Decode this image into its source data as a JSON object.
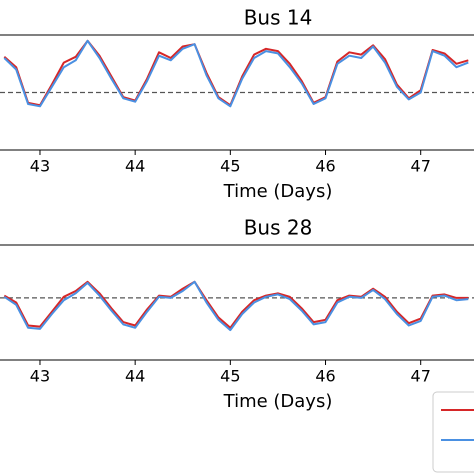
{
  "chart_data": [
    {
      "type": "line",
      "title": "Bus 14",
      "x_label": "Time (Days)",
      "x": [
        42.625,
        42.75,
        42.875,
        43.0,
        43.125,
        43.25,
        43.375,
        43.5,
        43.625,
        43.75,
        43.875,
        44.0,
        44.125,
        44.25,
        44.375,
        44.5,
        44.625,
        44.75,
        44.875,
        45.0,
        45.125,
        45.25,
        45.375,
        45.5,
        45.625,
        45.75,
        45.875,
        46.0,
        46.125,
        46.25,
        46.375,
        46.5,
        46.625,
        46.75,
        46.875,
        47.0,
        47.125,
        47.25,
        47.375,
        47.5
      ],
      "series": [
        {
          "color": "#d62728",
          "values": [
            0.81,
            0.72,
            0.41,
            0.39,
            0.57,
            0.76,
            0.81,
            0.95,
            0.82,
            0.64,
            0.46,
            0.43,
            0.62,
            0.85,
            0.8,
            0.9,
            0.92,
            0.67,
            0.46,
            0.39,
            0.64,
            0.83,
            0.88,
            0.86,
            0.75,
            0.6,
            0.41,
            0.46,
            0.77,
            0.85,
            0.83,
            0.91,
            0.79,
            0.57,
            0.45,
            0.52,
            0.87,
            0.84,
            0.75,
            0.78
          ]
        },
        {
          "color": "#4a90e2",
          "values": [
            0.8,
            0.7,
            0.4,
            0.38,
            0.55,
            0.72,
            0.78,
            0.95,
            0.8,
            0.62,
            0.45,
            0.42,
            0.6,
            0.82,
            0.78,
            0.88,
            0.92,
            0.65,
            0.45,
            0.38,
            0.62,
            0.8,
            0.86,
            0.84,
            0.72,
            0.58,
            0.4,
            0.45,
            0.75,
            0.82,
            0.8,
            0.9,
            0.76,
            0.55,
            0.44,
            0.5,
            0.86,
            0.82,
            0.72,
            0.76
          ]
        }
      ],
      "reference_line": 0.5,
      "xlim": [
        42.58,
        47.56
      ],
      "ylim": [
        0,
        1
      ],
      "xticks": [
        43,
        44,
        45,
        46,
        47
      ]
    },
    {
      "type": "line",
      "title": "Bus 28",
      "x_label": "Time (Days)",
      "x": [
        42.625,
        42.75,
        42.875,
        43.0,
        43.125,
        43.25,
        43.375,
        43.5,
        43.625,
        43.75,
        43.875,
        44.0,
        44.125,
        44.25,
        44.375,
        44.5,
        44.625,
        44.75,
        44.875,
        45.0,
        45.125,
        45.25,
        45.375,
        45.5,
        45.625,
        45.75,
        45.875,
        46.0,
        46.125,
        46.25,
        46.375,
        46.5,
        46.625,
        46.75,
        46.875,
        47.0,
        47.125,
        47.25,
        47.375,
        47.5
      ],
      "series": [
        {
          "color": "#d62728",
          "values": [
            0.56,
            0.5,
            0.3,
            0.29,
            0.42,
            0.55,
            0.6,
            0.68,
            0.58,
            0.45,
            0.33,
            0.3,
            0.44,
            0.56,
            0.55,
            0.62,
            0.68,
            0.52,
            0.37,
            0.28,
            0.42,
            0.52,
            0.56,
            0.58,
            0.55,
            0.45,
            0.33,
            0.35,
            0.52,
            0.56,
            0.55,
            0.62,
            0.55,
            0.42,
            0.32,
            0.36,
            0.56,
            0.57,
            0.54,
            0.54
          ]
        },
        {
          "color": "#4a90e2",
          "values": [
            0.55,
            0.48,
            0.28,
            0.27,
            0.4,
            0.52,
            0.58,
            0.67,
            0.56,
            0.43,
            0.31,
            0.28,
            0.42,
            0.55,
            0.54,
            0.6,
            0.68,
            0.5,
            0.35,
            0.26,
            0.4,
            0.5,
            0.55,
            0.57,
            0.53,
            0.43,
            0.31,
            0.33,
            0.5,
            0.55,
            0.54,
            0.61,
            0.53,
            0.4,
            0.3,
            0.34,
            0.55,
            0.56,
            0.52,
            0.53
          ]
        }
      ],
      "reference_line": 0.54,
      "xlim": [
        42.58,
        47.56
      ],
      "ylim": [
        0,
        1
      ],
      "xticks": [
        43,
        44,
        45,
        46,
        47
      ]
    }
  ]
}
